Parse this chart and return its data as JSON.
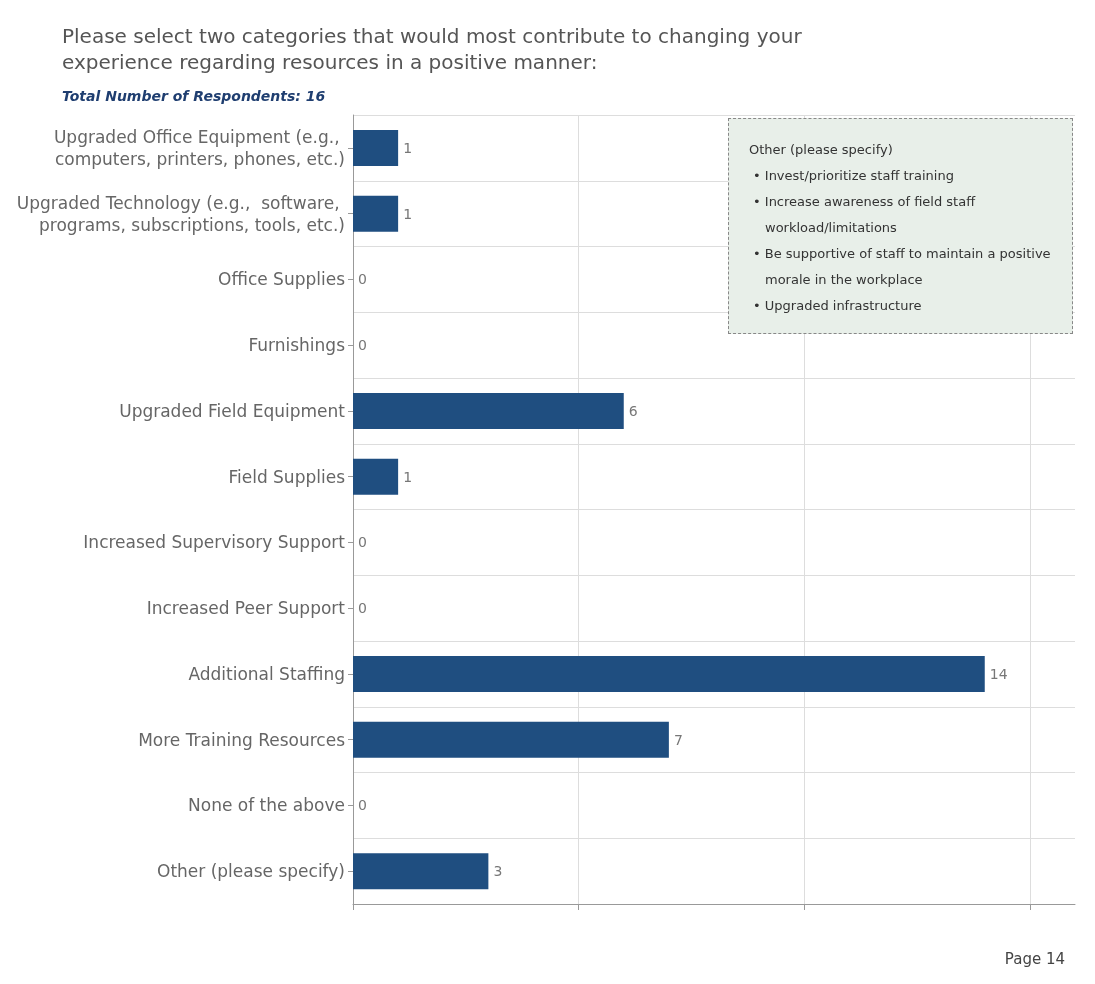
{
  "chart_data": {
    "type": "bar",
    "orientation": "horizontal",
    "title": "Please select two categories that would most contribute to changing your experience regarding resources in a positive manner:",
    "subtitle": "Total Number of Respondents: 16",
    "categories": [
      "Upgraded Office Equipment (e.g., computers, printers, phones, etc.)",
      "Upgraded Technology (e.g.,  software, programs, subscriptions, tools, etc.)",
      "Office Supplies",
      "Furnishings",
      "Upgraded Field Equipment",
      "Field Supplies",
      "Increased Supervisory Support",
      "Increased Peer Support",
      "Additional Staffing",
      "More Training Resources",
      "None of the above",
      "Other (please specify)"
    ],
    "values": [
      1,
      1,
      0,
      0,
      6,
      1,
      0,
      0,
      14,
      7,
      0,
      3
    ],
    "color": "#1f4e80",
    "data_labels": true,
    "xlim": [
      0,
      16
    ],
    "xticks": [
      {
        "value": 0,
        "label": null
      },
      {
        "value": 5,
        "label": null
      },
      {
        "value": 10,
        "label": null
      },
      {
        "value": 15,
        "label": null
      }
    ],
    "tick_labels": "y",
    "grid": true,
    "annotations": [
      "Other (please specify)",
      "• Invest/prioritize staff training",
      "• Increase awareness of field staff workload/limitations",
      "• Be supportive of staff to maintain a positive morale in the workplace",
      "• Upgraded infrastructure",
      "Page 14"
    ]
  }
}
